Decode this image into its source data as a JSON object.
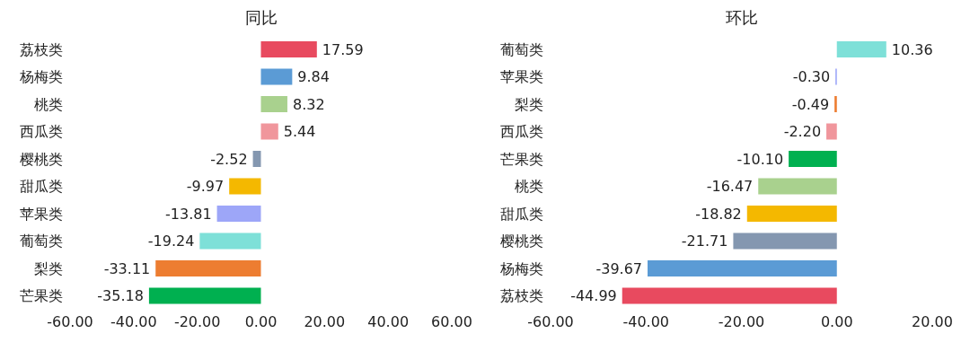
{
  "chart_data": [
    {
      "type": "bar",
      "orientation": "horizontal",
      "title": "同比",
      "categories": [
        "荔枝类",
        "杨梅类",
        "桃类",
        "西瓜类",
        "樱桃类",
        "甜瓜类",
        "苹果类",
        "葡萄类",
        "梨类",
        "芒果类"
      ],
      "values": [
        17.59,
        9.84,
        8.32,
        5.44,
        -2.52,
        -9.97,
        -13.81,
        -19.24,
        -33.11,
        -35.18
      ],
      "value_labels": [
        "17.59",
        "9.84",
        "8.32",
        "5.44",
        "-2.52",
        "-9.97",
        "-13.81",
        "-19.24",
        "-33.11",
        "-35.18"
      ],
      "colors": [
        "#e84a5f",
        "#5b9bd5",
        "#a9d18e",
        "#f0969c",
        "#8497b0",
        "#f4b800",
        "#9da6f8",
        "#7ee0d8",
        "#ed7d31",
        "#00b050"
      ],
      "xlim": [
        -60,
        60
      ],
      "xticks": [
        {
          "value": -60,
          "label": "-60.00"
        },
        {
          "value": -40,
          "label": "-40.00"
        },
        {
          "value": -20,
          "label": "-20.00"
        },
        {
          "value": 0,
          "label": "0.00"
        },
        {
          "value": 20,
          "label": "20.00"
        },
        {
          "value": 40,
          "label": "40.00"
        },
        {
          "value": 60,
          "label": "60.00"
        }
      ]
    },
    {
      "type": "bar",
      "orientation": "horizontal",
      "title": "环比",
      "categories": [
        "葡萄类",
        "苹果类",
        "梨类",
        "西瓜类",
        "芒果类",
        "桃类",
        "甜瓜类",
        "樱桃类",
        "杨梅类",
        "荔枝类"
      ],
      "values": [
        10.36,
        -0.3,
        -0.49,
        -2.2,
        -10.1,
        -16.47,
        -18.82,
        -21.71,
        -39.67,
        -44.99
      ],
      "value_labels": [
        "10.36",
        "-0.30",
        "-0.49",
        "-2.20",
        "-10.10",
        "-16.47",
        "-18.82",
        "-21.71",
        "-39.67",
        "-44.99"
      ],
      "colors": [
        "#7ee0d8",
        "#9da6f8",
        "#ed7d31",
        "#f0969c",
        "#00b050",
        "#a9d18e",
        "#f4b800",
        "#8497b0",
        "#5b9bd5",
        "#e84a5f"
      ],
      "xlim": [
        -60,
        20
      ],
      "xticks": [
        {
          "value": -60,
          "label": "-60.00"
        },
        {
          "value": -40,
          "label": "-40.00"
        },
        {
          "value": -20,
          "label": "-20.00"
        },
        {
          "value": 0,
          "label": "0.00"
        },
        {
          "value": 20,
          "label": "20.00"
        }
      ]
    }
  ]
}
